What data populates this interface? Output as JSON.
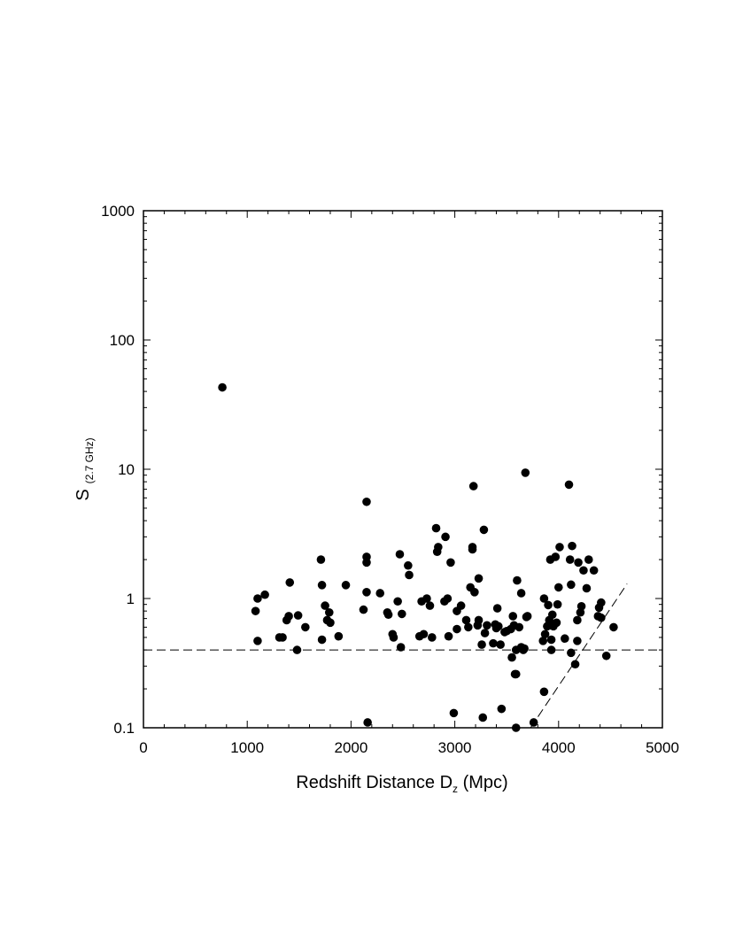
{
  "chart_data": {
    "type": "scatter",
    "title": "",
    "xlabel": "Redshift Distance D",
    "xlabel_sub": "z",
    "xlabel_unit": " (Mpc)",
    "ylabel": "S",
    "ylabel_sub": "(2.7 GHz)",
    "xlim": [
      0,
      5000
    ],
    "ylim": [
      0.1,
      1000
    ],
    "yscale": "log",
    "grid": false,
    "legend": "none",
    "x_ticks": [
      0,
      1000,
      2000,
      3000,
      4000,
      5000
    ],
    "x_tick_labels": [
      "0",
      "1000",
      "2000",
      "3000",
      "4000",
      "5000"
    ],
    "y_ticks": [
      0.1,
      1,
      10,
      100,
      1000
    ],
    "y_tick_labels": [
      "0.1",
      "1",
      "10",
      "100",
      "1000"
    ],
    "marker_color": "#000000",
    "reference_lines": [
      {
        "name": "flux-limit",
        "style": "dashed",
        "points": [
          [
            0,
            0.4
          ],
          [
            5000,
            0.4
          ]
        ]
      },
      {
        "name": "distance-cutoff",
        "style": "dashed",
        "points": [
          [
            3730,
            0.1
          ],
          [
            4660,
            1.3
          ]
        ]
      }
    ],
    "series": [
      {
        "points": [
          [
            760,
            43
          ],
          [
            1080,
            0.8
          ],
          [
            1100,
            1.0
          ],
          [
            1100,
            0.47
          ],
          [
            1170,
            1.07
          ],
          [
            1310,
            0.5
          ],
          [
            1340,
            0.5
          ],
          [
            1380,
            0.68
          ],
          [
            1400,
            0.73
          ],
          [
            1410,
            1.33
          ],
          [
            1480,
            0.4
          ],
          [
            1490,
            0.74
          ],
          [
            1560,
            0.6
          ],
          [
            1710,
            2.0
          ],
          [
            1720,
            1.27
          ],
          [
            1720,
            0.48
          ],
          [
            1750,
            0.88
          ],
          [
            1770,
            0.68
          ],
          [
            1790,
            0.78
          ],
          [
            1800,
            0.65
          ],
          [
            1880,
            0.51
          ],
          [
            1950,
            1.27
          ],
          [
            2120,
            0.82
          ],
          [
            2150,
            5.6
          ],
          [
            2150,
            2.1
          ],
          [
            2150,
            1.9
          ],
          [
            2150,
            1.12
          ],
          [
            2160,
            0.11
          ],
          [
            2280,
            1.1
          ],
          [
            2350,
            0.78
          ],
          [
            2360,
            0.75
          ],
          [
            2400,
            0.53
          ],
          [
            2410,
            0.5
          ],
          [
            2450,
            0.95
          ],
          [
            2470,
            2.2
          ],
          [
            2480,
            0.42
          ],
          [
            2490,
            0.76
          ],
          [
            2550,
            1.8
          ],
          [
            2560,
            1.52
          ],
          [
            2660,
            0.51
          ],
          [
            2680,
            0.95
          ],
          [
            2700,
            0.53
          ],
          [
            2730,
            1.0
          ],
          [
            2760,
            0.88
          ],
          [
            2780,
            0.5
          ],
          [
            2820,
            3.5
          ],
          [
            2830,
            2.3
          ],
          [
            2840,
            2.5
          ],
          [
            2900,
            0.95
          ],
          [
            2910,
            3.0
          ],
          [
            2930,
            1.0
          ],
          [
            2940,
            0.51
          ],
          [
            2960,
            1.9
          ],
          [
            2990,
            0.13
          ],
          [
            3020,
            0.8
          ],
          [
            3020,
            0.58
          ],
          [
            3060,
            0.88
          ],
          [
            3110,
            0.68
          ],
          [
            3130,
            0.6
          ],
          [
            3150,
            1.22
          ],
          [
            3170,
            2.5
          ],
          [
            3170,
            2.4
          ],
          [
            3180,
            7.4
          ],
          [
            3190,
            1.12
          ],
          [
            3220,
            0.62
          ],
          [
            3230,
            1.43
          ],
          [
            3230,
            0.68
          ],
          [
            3260,
            0.44
          ],
          [
            3270,
            0.12
          ],
          [
            3280,
            3.4
          ],
          [
            3290,
            0.54
          ],
          [
            3310,
            0.62
          ],
          [
            3370,
            0.45
          ],
          [
            3390,
            0.63
          ],
          [
            3400,
            0.59
          ],
          [
            3410,
            0.84
          ],
          [
            3420,
            0.61
          ],
          [
            3440,
            0.44
          ],
          [
            3450,
            0.14
          ],
          [
            3480,
            0.55
          ],
          [
            3500,
            0.56
          ],
          [
            3540,
            0.58
          ],
          [
            3550,
            0.35
          ],
          [
            3560,
            0.73
          ],
          [
            3570,
            0.62
          ],
          [
            3580,
            0.26
          ],
          [
            3590,
            0.1
          ],
          [
            3590,
            0.26
          ],
          [
            3590,
            0.4
          ],
          [
            3600,
            1.38
          ],
          [
            3620,
            0.6
          ],
          [
            3640,
            0.42
          ],
          [
            3640,
            1.1
          ],
          [
            3660,
            0.4
          ],
          [
            3670,
            0.41
          ],
          [
            3680,
            9.4
          ],
          [
            3690,
            0.72
          ],
          [
            3700,
            0.73
          ],
          [
            3760,
            0.11
          ],
          [
            3850,
            0.47
          ],
          [
            3860,
            1.0
          ],
          [
            3860,
            0.19
          ],
          [
            3870,
            0.53
          ],
          [
            3890,
            0.61
          ],
          [
            3900,
            0.89
          ],
          [
            3910,
            0.68
          ],
          [
            3920,
            2.0
          ],
          [
            3920,
            0.62
          ],
          [
            3930,
            0.48
          ],
          [
            3930,
            0.4
          ],
          [
            3940,
            0.75
          ],
          [
            3950,
            0.61
          ],
          [
            3970,
            2.1
          ],
          [
            3980,
            0.65
          ],
          [
            3990,
            0.9
          ],
          [
            4000,
            1.22
          ],
          [
            4010,
            2.5
          ],
          [
            4060,
            0.49
          ],
          [
            4100,
            7.6
          ],
          [
            4110,
            2.0
          ],
          [
            4120,
            1.28
          ],
          [
            4120,
            0.38
          ],
          [
            4130,
            2.55
          ],
          [
            4160,
            0.31
          ],
          [
            4180,
            0.47
          ],
          [
            4180,
            0.68
          ],
          [
            4190,
            1.9
          ],
          [
            4210,
            0.78
          ],
          [
            4220,
            0.87
          ],
          [
            4240,
            1.65
          ],
          [
            4270,
            1.2
          ],
          [
            4290,
            2.0
          ],
          [
            4340,
            1.65
          ],
          [
            4380,
            0.73
          ],
          [
            4390,
            0.85
          ],
          [
            4410,
            0.93
          ],
          [
            4410,
            0.71
          ],
          [
            4460,
            0.36
          ],
          [
            4530,
            0.6
          ]
        ]
      }
    ]
  }
}
